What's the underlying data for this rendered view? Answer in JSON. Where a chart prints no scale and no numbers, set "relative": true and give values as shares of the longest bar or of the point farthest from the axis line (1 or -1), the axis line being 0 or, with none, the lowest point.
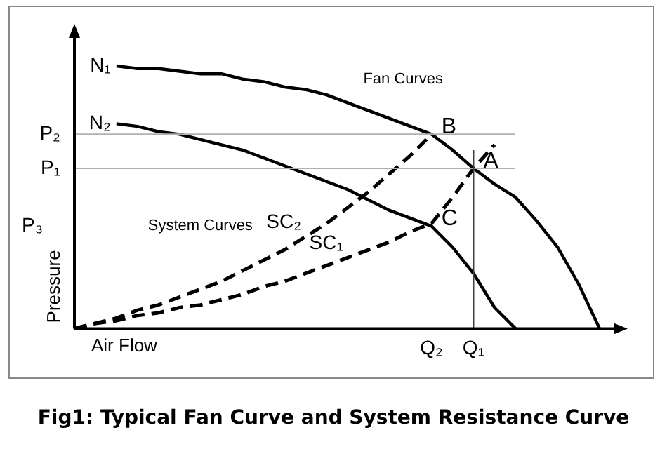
{
  "chart_data": {
    "type": "line",
    "relative": true,
    "title": "Fig1: Typical Fan Curve and System Resistance Curve",
    "xlabel": "Air Flow",
    "ylabel": "Pressure",
    "grid": false,
    "marker": "none",
    "categories": [
      null,
      null,
      null,
      null,
      null,
      null,
      null,
      null,
      null,
      null,
      null,
      null,
      null,
      null,
      null,
      null,
      null,
      "Q₂",
      null,
      "Q₁",
      null,
      null,
      null,
      null,
      null,
      null
    ],
    "series": [
      {
        "name": "N₁",
        "color": "#000000",
        "line_style": "solid",
        "values": [
          null,
          null,
          1.0,
          0.99,
          0.99,
          0.98,
          0.97,
          0.97,
          0.95,
          0.94,
          0.92,
          0.91,
          0.89,
          0.86,
          0.83,
          0.8,
          0.77,
          0.74,
          0.68,
          0.61,
          0.55,
          0.5,
          0.41,
          0.31,
          0.17,
          0
        ]
      },
      {
        "name": "N₂",
        "color": "#000000",
        "line_style": "solid",
        "values": [
          null,
          null,
          0.78,
          0.77,
          0.75,
          0.74,
          0.72,
          0.7,
          0.68,
          0.65,
          0.62,
          0.59,
          0.56,
          0.53,
          0.49,
          0.45,
          0.42,
          0.39,
          0.31,
          0.21,
          0.08,
          0,
          null,
          null,
          null,
          null
        ]
      },
      {
        "name": "SC₂",
        "color": "#000000",
        "line_style": "dashed",
        "values": [
          0,
          0.02,
          0.04,
          0.07,
          0.09,
          0.12,
          0.15,
          0.18,
          0.22,
          0.26,
          0.3,
          0.35,
          0.4,
          0.46,
          0.52,
          0.59,
          0.66,
          0.74,
          null,
          null,
          null,
          null,
          null,
          null,
          null,
          null
        ]
      },
      {
        "name": "SC₁",
        "color": "#000000",
        "line_style": "dashed",
        "values": [
          0,
          0.02,
          0.03,
          0.05,
          0.06,
          0.08,
          0.09,
          0.11,
          0.13,
          0.16,
          0.18,
          0.21,
          0.24,
          0.27,
          0.3,
          0.33,
          0.37,
          0.4,
          0.5,
          0.61,
          0.7,
          null,
          null,
          null,
          null,
          null
        ]
      }
    ],
    "ref_lines": [
      {
        "axis": "y",
        "value": 0.74,
        "label": "P₂",
        "color": "#b0b0b0"
      },
      {
        "axis": "y",
        "value": 0.61,
        "label": "P₁",
        "color": "#b0b0b0"
      },
      {
        "axis": "x",
        "value": "Q₁",
        "color": "#404040"
      }
    ],
    "annotations": [
      "P₃",
      {
        "text": "A",
        "x": "Q₁",
        "y": 0.61
      },
      {
        "text": "B",
        "x": "Q₂",
        "y": 0.74
      },
      {
        "text": "C",
        "x": "Q₂",
        "y": 0.39
      },
      "Fan Curves",
      "System Curves"
    ]
  }
}
